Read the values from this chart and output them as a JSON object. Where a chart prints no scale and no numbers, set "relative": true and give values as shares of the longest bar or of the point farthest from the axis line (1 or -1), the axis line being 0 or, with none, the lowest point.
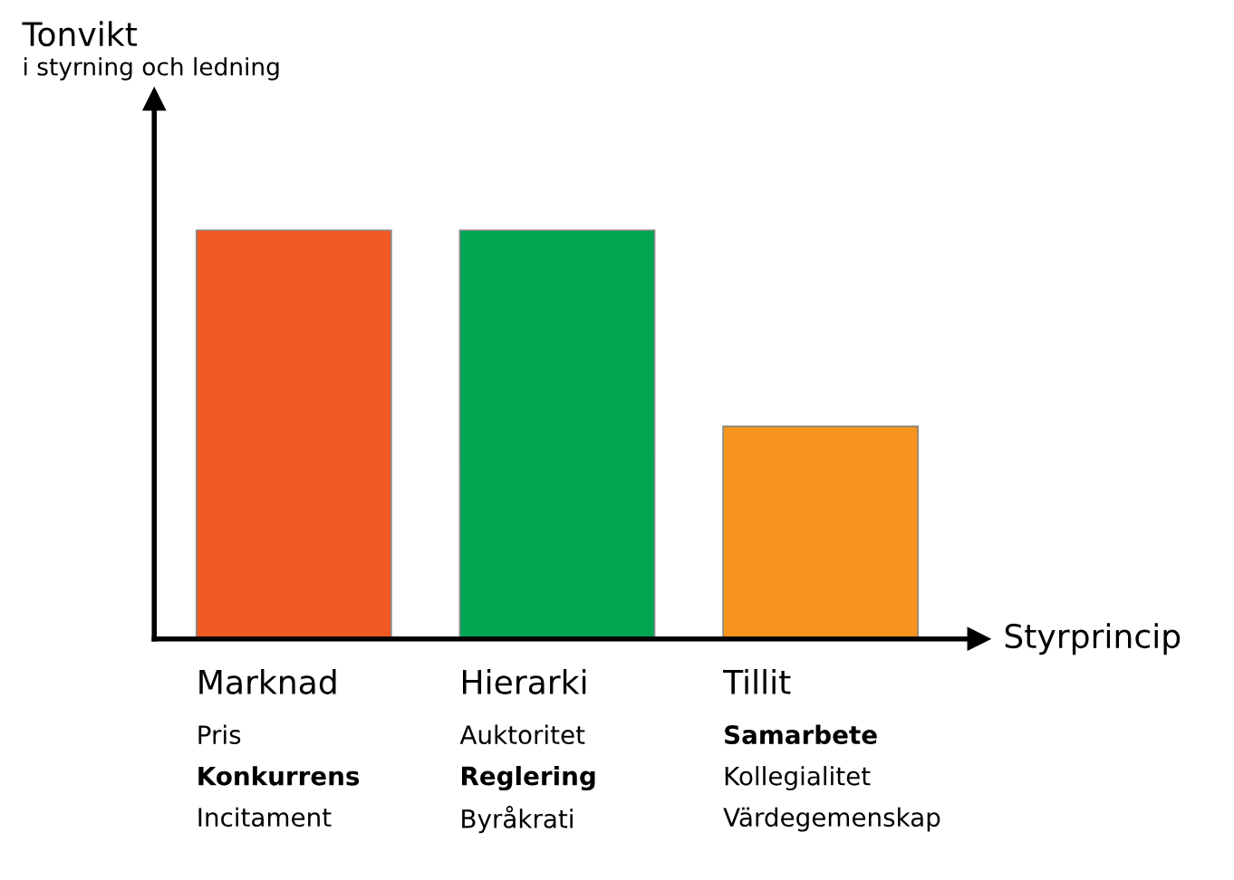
{
  "chart_data": {
    "type": "bar",
    "relative": true,
    "title": "Tonvikt",
    "subtitle": "i styrning och ledning",
    "xlabel": "Styrprincip",
    "categories": [
      "Marknad",
      "Hierarki",
      "Tillit"
    ],
    "values": [
      1,
      1,
      0.52
    ],
    "colors": [
      "#f15a22",
      "#00a651",
      "#f7941d"
    ],
    "annotations": [
      "Pris",
      "Konkurrens",
      "Incitament",
      "Auktoritet",
      "Reglering",
      "Byråkrati",
      "Samarbete",
      "Kollegialitet",
      "Värdegemenskap"
    ],
    "grid": false,
    "legend": false
  }
}
